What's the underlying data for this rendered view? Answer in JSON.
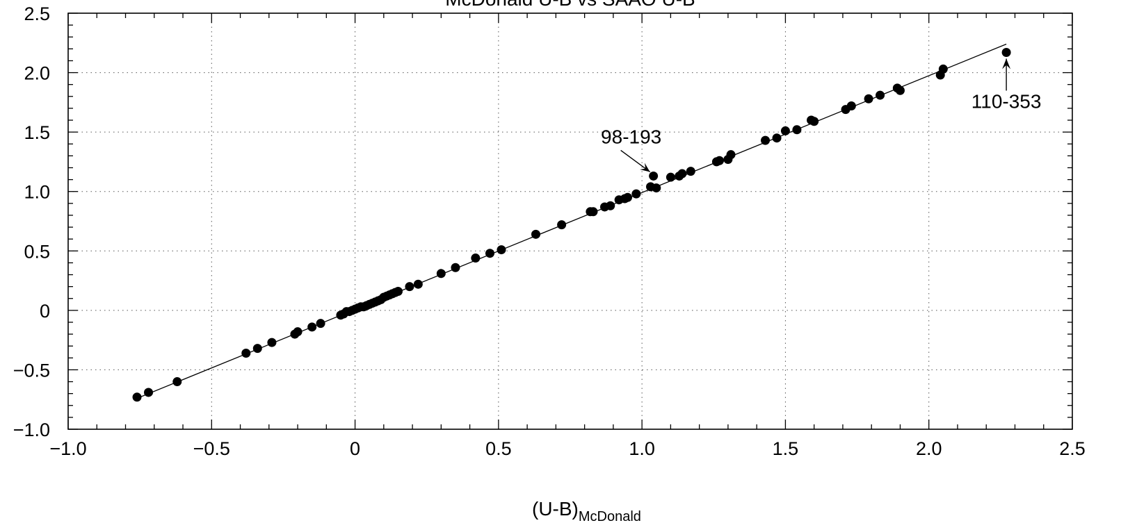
{
  "chart_data": {
    "type": "scatter",
    "title": "McDonald U-B vs SAAO U-B",
    "xlabel_main": "(U-B)",
    "xlabel_sub": "McDonald",
    "ylabel": "",
    "xlim": [
      -1.0,
      2.5
    ],
    "ylim": [
      -1.0,
      2.5
    ],
    "x_ticks": [
      -1.0,
      -0.5,
      0,
      0.5,
      1.0,
      1.5,
      2.0,
      2.5
    ],
    "x_tick_labels": [
      "−1.0",
      "−0.5",
      "0",
      "0.5",
      "1.0",
      "1.5",
      "2.0",
      "2.5"
    ],
    "y_ticks": [
      -1.0,
      -0.5,
      0,
      0.5,
      1.0,
      1.5,
      2.0,
      2.5
    ],
    "y_tick_labels": [
      "−1.0",
      "−0.5",
      "0",
      "0.5",
      "1.0",
      "1.5",
      "2.0",
      "2.5"
    ],
    "grid": true,
    "fit_line": {
      "x": [
        -0.76,
        2.27
      ],
      "y": [
        -0.74,
        2.24
      ]
    },
    "points": [
      [
        -0.76,
        -0.73
      ],
      [
        -0.72,
        -0.69
      ],
      [
        -0.62,
        -0.6
      ],
      [
        -0.38,
        -0.36
      ],
      [
        -0.34,
        -0.32
      ],
      [
        -0.29,
        -0.27
      ],
      [
        -0.21,
        -0.2
      ],
      [
        -0.2,
        -0.18
      ],
      [
        -0.15,
        -0.14
      ],
      [
        -0.12,
        -0.11
      ],
      [
        -0.05,
        -0.04
      ],
      [
        -0.04,
        -0.03
      ],
      [
        -0.03,
        -0.01
      ],
      [
        -0.02,
        -0.01
      ],
      [
        -0.01,
        0.0
      ],
      [
        0.0,
        0.01
      ],
      [
        0.01,
        0.02
      ],
      [
        0.02,
        0.03
      ],
      [
        0.03,
        0.03
      ],
      [
        0.04,
        0.04
      ],
      [
        0.05,
        0.05
      ],
      [
        0.06,
        0.06
      ],
      [
        0.07,
        0.07
      ],
      [
        0.08,
        0.08
      ],
      [
        0.09,
        0.09
      ],
      [
        0.1,
        0.11
      ],
      [
        0.11,
        0.12
      ],
      [
        0.12,
        0.13
      ],
      [
        0.13,
        0.14
      ],
      [
        0.14,
        0.15
      ],
      [
        0.15,
        0.16
      ],
      [
        0.19,
        0.2
      ],
      [
        0.22,
        0.22
      ],
      [
        0.3,
        0.31
      ],
      [
        0.35,
        0.36
      ],
      [
        0.42,
        0.44
      ],
      [
        0.47,
        0.48
      ],
      [
        0.51,
        0.51
      ],
      [
        0.63,
        0.64
      ],
      [
        0.72,
        0.72
      ],
      [
        0.82,
        0.83
      ],
      [
        0.83,
        0.83
      ],
      [
        0.87,
        0.87
      ],
      [
        0.89,
        0.88
      ],
      [
        0.92,
        0.93
      ],
      [
        0.94,
        0.94
      ],
      [
        0.95,
        0.95
      ],
      [
        0.98,
        0.98
      ],
      [
        1.03,
        1.04
      ],
      [
        1.04,
        1.13
      ],
      [
        1.05,
        1.03
      ],
      [
        1.1,
        1.12
      ],
      [
        1.13,
        1.13
      ],
      [
        1.14,
        1.15
      ],
      [
        1.17,
        1.17
      ],
      [
        1.26,
        1.25
      ],
      [
        1.27,
        1.26
      ],
      [
        1.3,
        1.27
      ],
      [
        1.31,
        1.31
      ],
      [
        1.43,
        1.43
      ],
      [
        1.47,
        1.45
      ],
      [
        1.5,
        1.51
      ],
      [
        1.54,
        1.52
      ],
      [
        1.59,
        1.6
      ],
      [
        1.6,
        1.59
      ],
      [
        1.71,
        1.69
      ],
      [
        1.73,
        1.72
      ],
      [
        1.79,
        1.78
      ],
      [
        1.83,
        1.81
      ],
      [
        1.89,
        1.87
      ],
      [
        1.9,
        1.85
      ],
      [
        2.04,
        1.98
      ],
      [
        2.05,
        2.03
      ],
      [
        2.27,
        2.17
      ]
    ],
    "annotations": [
      {
        "label": "98-193",
        "x": 1.04,
        "y": 1.13
      },
      {
        "label": "110-353",
        "x": 2.27,
        "y": 2.17
      }
    ]
  }
}
